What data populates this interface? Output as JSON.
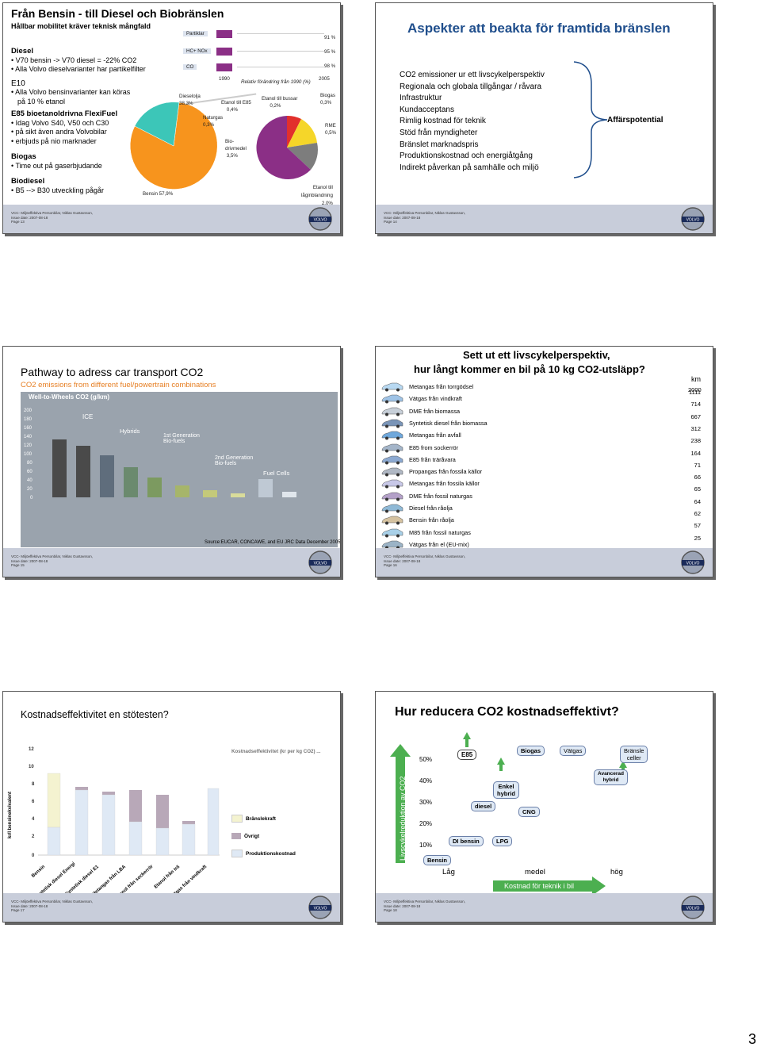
{
  "page_number": "3",
  "footer": {
    "line1": "VCC- Miljöeffektiva Personbilar, Niklas Gustavsson,",
    "line2": "Issue date: 2007-08-18",
    "pages": [
      "Page 13",
      "Page 14",
      "Page 15",
      "Page 16",
      "Page 17",
      "Page 18"
    ],
    "logo_text": "VOLVO"
  },
  "slide13": {
    "title": "Från Bensin - till Diesel och Biobränslen",
    "subtitle": "Hållbar mobilitet kräver teknisk mångfald",
    "sections": [
      {
        "heading": "Diesel",
        "bullets": [
          "V70 bensin -> V70 diesel = -22% CO2",
          "Alla Volvo dieselvarianter har partikelfilter"
        ]
      },
      {
        "heading": "E10",
        "bullets": [
          "Alla Volvo bensinvarianter kan köras",
          "på 10 % etanol"
        ]
      },
      {
        "heading": "E85 bioetanoldrivna FlexiFuel",
        "bullets": [
          "Idag Volvo S40, V50 och C30",
          "på sikt även andra Volvobilar",
          "erbjuds på nio marknader"
        ]
      },
      {
        "heading": "Biogas",
        "bullets": [
          "Time out på gaserbjudande"
        ]
      },
      {
        "heading": "Biodiesel",
        "bullets": [
          "B5 --> B30 utveckling pågår"
        ]
      }
    ],
    "bars": [
      {
        "label": "Partiklar",
        "pct": "91 %",
        "value": 91
      },
      {
        "label": "HC+ NOx",
        "pct": "95 %",
        "value": 95
      },
      {
        "label": "CO",
        "pct": "98 %",
        "value": 98
      }
    ],
    "year_start": "1990",
    "year_end": "2005",
    "relative_note": "Relativ förändring från 1990 (%)",
    "pie_labels": {
      "bensin": "Bensin 57,9%",
      "dieselolja": "Dieselolja 38,3%",
      "naturgas": "Naturgas 0,3%",
      "etanol_e85": "Etanol till E85 0,4%",
      "etanol_bussar": "Etanol till bussar 0,2%",
      "biogas": "Biogas 0,3%",
      "rme": "RME 0,5%",
      "biodrivmedel": "Bio-drivmedel 3,5%",
      "laginblandning": "Etanol till låginblandning 2,0%"
    },
    "pie_colors": {
      "bensin": "#f7941d",
      "diesel": "#3cc6b8",
      "bio_red": "#e2302c",
      "bio_purple": "#8b2f86",
      "bio_yellow": "#f5d629",
      "bio_gray": "#7d7d7d"
    }
  },
  "slide14": {
    "title": "Aspekter att beakta för framtida bränslen",
    "items": [
      "CO2 emissioner ur ett livscykelperspektiv",
      "Regionala och globala tillgångar / råvara",
      "Infrastruktur",
      "Kundacceptans",
      "Rimlig kostnad för teknik",
      "Stöd från myndigheter",
      "Bränslet marknadspris",
      "Produktionskostnad och energiåtgång",
      "Indirekt påverkan på samhälle och miljö"
    ],
    "side_label": "Affärspotential",
    "title_color": "#1f4e8c"
  },
  "slide15": {
    "title": "Pathway to adress car transport CO2",
    "subtitle": "CO2 emissions from different fuel/powertrain combinations",
    "chart_title": "Well-to-Wheels CO2 (g/km)",
    "source": "Source:EUCAR, CONCAWE, and EU JRC Data December 2005",
    "annotations": [
      "ICE",
      "Hybrids",
      "1st Generation Bio-fuels",
      "2nd Generation Bio-fuels",
      "Fuel Cells"
    ]
  },
  "slide16": {
    "title_line1": "Sett ut ett livscykelperspektiv,",
    "title_line2": "hur långt kommer en bil på 10 kg CO2-utsläpp?",
    "unit": "km",
    "first_value": "2000",
    "rows": [
      {
        "label": "Metangas från torrgödsel",
        "km": "1111"
      },
      {
        "label": "Vätgas från vindkraft",
        "km": "714"
      },
      {
        "label": "DME från biomassa",
        "km": "667"
      },
      {
        "label": "Syntetisk diesel från biomassa",
        "km": "312"
      },
      {
        "label": "Metangas från avfall",
        "km": "238"
      },
      {
        "label": "E85 from sockerrör",
        "km": "164"
      },
      {
        "label": "E85 från träråvara",
        "km": "71"
      },
      {
        "label": "Propangas från fossila källor",
        "km": "66"
      },
      {
        "label": "Metangas från fossila källor",
        "km": "65"
      },
      {
        "label": "DME från fossil naturgas",
        "km": "64"
      },
      {
        "label": "Diesel från råolja",
        "km": "62"
      },
      {
        "label": "Bensin från råolja",
        "km": "57"
      },
      {
        "label": "M85 från fossil naturgas",
        "km": "25"
      },
      {
        "label": "Vätgas från el (EU-mix)",
        "km": ""
      }
    ],
    "title_color": "#1a1a1a"
  },
  "slide17": {
    "title": "Kostnadseffektivitet en stötesten?",
    "legend": [
      "Bränslekraft",
      "Övrigt",
      "Produktionskostnad"
    ],
    "note": "Kostnadseffektivitet (kr per kg CO2) ...",
    "y_label": "kr/l bensinekvivalent",
    "yticks": [
      "12",
      "10",
      "8",
      "6",
      "4",
      "2",
      "0"
    ],
    "categories": [
      "Bensin",
      "Syntetisk diesel Energi",
      "Syntetisk diesel E1",
      "Metangas från LBA",
      "Etanol från sockerrör",
      "Etanol från trä",
      "Vätgas från vindkraft"
    ]
  },
  "slide18": {
    "title": "Hur reducera CO2 kostnadseffektivt?",
    "y_axis": "Livscykelreduktion av CO2",
    "y_ticks": [
      "50%",
      "40%",
      "30%",
      "20%",
      "10%"
    ],
    "x_ticks": [
      "Låg",
      "medel",
      "hög"
    ],
    "x_axis": "Kostnad för teknik i bil",
    "fuel_labels": [
      "E85",
      "Biogas",
      "Vätgas",
      "Bränsle celler",
      "Enkel hybrid",
      "Avancerad hybrid",
      "diesel",
      "CNG",
      "DI bensin",
      "LPG",
      "Bensin"
    ]
  }
}
